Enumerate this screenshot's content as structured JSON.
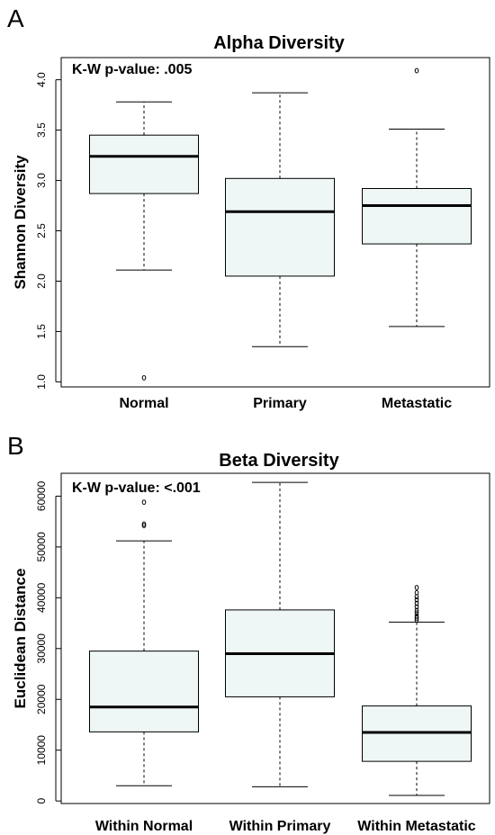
{
  "chart_data": [
    {
      "type": "box",
      "panel_label": "A",
      "title": "Alpha Diversity",
      "annotation": "K-W p-value: .005",
      "xlabel": "",
      "ylabel": "Shannon Diversity",
      "ylim": [
        0.95,
        4.22
      ],
      "yticks": [
        "1.0",
        "1.5",
        "2.0",
        "2.5",
        "3.0",
        "3.5",
        "4.0"
      ],
      "box_fill": "#eef6f6",
      "categories": [
        "Normal",
        "Primary",
        "Metastatic"
      ],
      "boxes": [
        {
          "name": "Normal",
          "whisker_low": 2.11,
          "q1": 2.87,
          "median": 3.24,
          "q3": 3.45,
          "whisker_high": 3.78,
          "outliers": [
            1.04
          ]
        },
        {
          "name": "Primary",
          "whisker_low": 1.35,
          "q1": 2.05,
          "median": 2.69,
          "q3": 3.02,
          "whisker_high": 3.87,
          "outliers": []
        },
        {
          "name": "Metastatic",
          "whisker_low": 1.55,
          "q1": 2.37,
          "median": 2.75,
          "q3": 2.92,
          "whisker_high": 3.51,
          "outliers": [
            4.09
          ]
        }
      ]
    },
    {
      "type": "box",
      "panel_label": "B",
      "title": "Beta Diversity",
      "annotation": "K-W p-value: <.001",
      "xlabel": "",
      "ylabel": "Euclidean Distance",
      "ylim": [
        -500,
        64500
      ],
      "yticks": [
        "0",
        "10000",
        "20000",
        "30000",
        "40000",
        "50000",
        "60000"
      ],
      "box_fill": "#eef6f6",
      "categories": [
        "Within Normal",
        "Within Primary",
        "Within Metastatic"
      ],
      "boxes": [
        {
          "name": "Within Normal",
          "whisker_low": 3000,
          "q1": 13600,
          "median": 18500,
          "q3": 29500,
          "whisker_high": 51200,
          "outliers": [
            54200,
            54500,
            58800
          ]
        },
        {
          "name": "Within Primary",
          "whisker_low": 2800,
          "q1": 20500,
          "median": 29000,
          "q3": 37600,
          "whisker_high": 62700,
          "outliers": []
        },
        {
          "name": "Within Metastatic",
          "whisker_low": 1100,
          "q1": 7800,
          "median": 13500,
          "q3": 18700,
          "whisker_high": 35200,
          "outliers": [
            35600,
            36000,
            36400,
            37000,
            37500,
            38200,
            38900,
            39600,
            40200,
            41000,
            42000
          ]
        }
      ]
    }
  ]
}
